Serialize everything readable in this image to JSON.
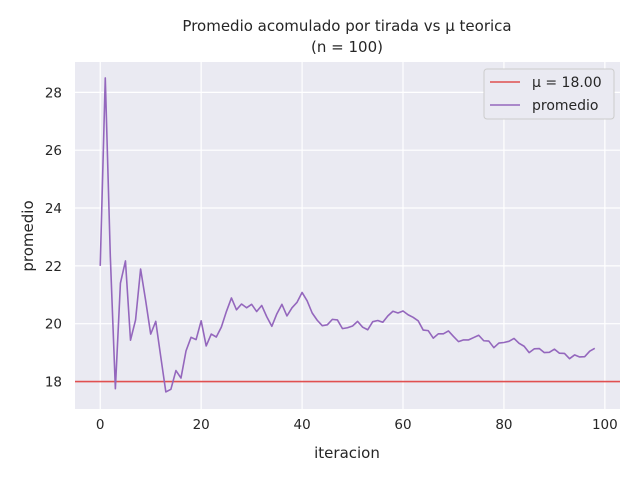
{
  "chart_data": {
    "type": "line",
    "title": "Promedio acomulado por tirada vs μ teorica",
    "subtitle": "(n = 100)",
    "xlabel": "iteracion",
    "ylabel": "promedio",
    "xlim": [
      -5,
      103
    ],
    "ylim": [
      17.05,
      29.05
    ],
    "xticks": [
      0,
      20,
      40,
      60,
      80,
      100
    ],
    "yticks": [
      18,
      20,
      22,
      24,
      26,
      28
    ],
    "grid": true,
    "legend_position": "top-right",
    "hline": {
      "name": "μ = 18.00",
      "value": 18.0,
      "color": "#e05050"
    },
    "series": [
      {
        "name": "promedio",
        "color": "#9467bd",
        "x": [
          0,
          1,
          2,
          3,
          4,
          5,
          6,
          7,
          8,
          9,
          10,
          11,
          12,
          13,
          14,
          15,
          16,
          17,
          18,
          19,
          20,
          21,
          22,
          23,
          24,
          25,
          26,
          27,
          28,
          29,
          30,
          31,
          32,
          33,
          34,
          35,
          36,
          37,
          38,
          39,
          40,
          41,
          42,
          43,
          44,
          45,
          46,
          47,
          48,
          49,
          50,
          51,
          52,
          53,
          54,
          55,
          56,
          57,
          58,
          59,
          60,
          61,
          62,
          63,
          64,
          65,
          66,
          67,
          68,
          69,
          70,
          71,
          72,
          73,
          74,
          75,
          76,
          77,
          78,
          79,
          80,
          81,
          82,
          83,
          84,
          85,
          86,
          87,
          88,
          89,
          90,
          91,
          92,
          93,
          94,
          95,
          96,
          97,
          98
        ],
        "values": [
          22.0,
          28.5,
          22.33,
          17.75,
          21.4,
          22.17,
          19.43,
          20.13,
          21.89,
          20.8,
          19.64,
          20.08,
          18.85,
          17.64,
          17.73,
          18.38,
          18.12,
          19.06,
          19.53,
          19.45,
          20.1,
          19.23,
          19.64,
          19.54,
          19.88,
          20.42,
          20.89,
          20.48,
          20.68,
          20.55,
          20.67,
          20.42,
          20.63,
          20.24,
          19.91,
          20.34,
          20.67,
          20.27,
          20.55,
          20.74,
          21.08,
          20.79,
          20.37,
          20.12,
          19.93,
          19.96,
          20.15,
          20.13,
          19.83,
          19.86,
          19.92,
          20.08,
          19.88,
          19.79,
          20.07,
          20.11,
          20.05,
          20.27,
          20.43,
          20.37,
          20.44,
          20.31,
          20.22,
          20.1,
          19.78,
          19.76,
          19.5,
          19.65,
          19.65,
          19.75,
          19.56,
          19.38,
          19.44,
          19.44,
          19.52,
          19.6,
          19.41,
          19.4,
          19.17,
          19.33,
          19.35,
          19.39,
          19.49,
          19.32,
          19.22,
          19.0,
          19.13,
          19.14,
          19.0,
          19.01,
          19.12,
          18.98,
          18.97,
          18.79,
          18.92,
          18.85,
          18.86,
          19.05,
          19.15
        ]
      }
    ]
  }
}
